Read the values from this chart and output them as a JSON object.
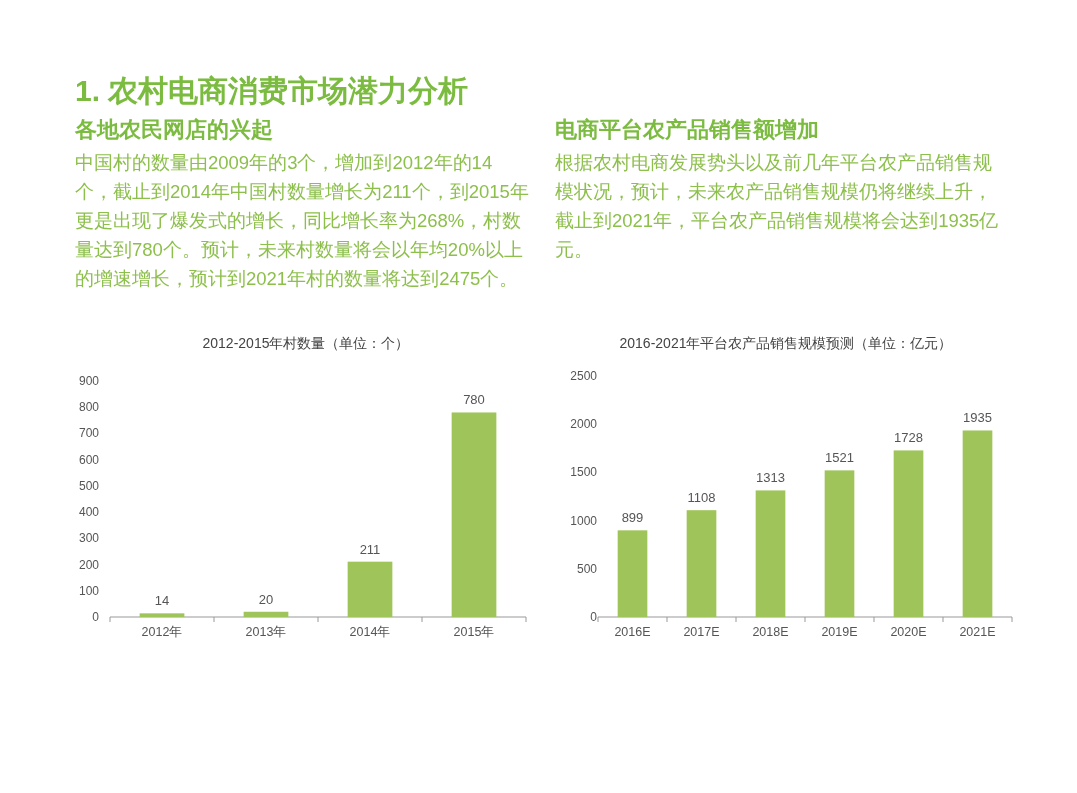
{
  "chart_data": [
    {
      "type": "bar",
      "title": "2012-2015年村数量（单位：个）",
      "categories": [
        "2012年",
        "2013年",
        "2014年",
        "2015年"
      ],
      "values": [
        14,
        20,
        211,
        780
      ],
      "color": "#9fc55a",
      "ylim": [
        0,
        900
      ],
      "yticks": [
        0,
        100,
        200,
        300,
        400,
        500,
        600,
        700,
        800,
        900
      ],
      "data_labels": true,
      "annotations": [
        "1. 农村电商消费市场潜力分析",
        "各地农民网店的兴起",
        "中国村的数量由2009年的3个，增加到2012年的14个，截止到2014年中国村数量增长为211个，到2015年更是出现了爆发式的增长，同比增长率为268%，村数量达到780个。预计，未来村数量将会以年均20%以上的增速增长，预计到2021年村的数量将达到2475个。"
      ]
    },
    {
      "type": "bar",
      "title": "2016-2021年平台农产品销售规模预测（单位：亿元）",
      "categories": [
        "2016E",
        "2017E",
        "2018E",
        "2019E",
        "2020E",
        "2021E"
      ],
      "values": [
        899,
        1108,
        1313,
        1521,
        1728,
        1935
      ],
      "color": "#9fc55a",
      "ylim": [
        0,
        2500
      ],
      "yticks": [
        0,
        500,
        1000,
        1500,
        2000,
        2500
      ],
      "data_labels": true,
      "annotations": [
        "电商平台农产品销售额增加",
        "根据农村电商发展势头以及前几年平台农产品销售规模状况，预计，未来农产品销售规模仍将继续上升，截止到2021年，平台农产品销售规模将会达到1935亿元。"
      ]
    }
  ]
}
